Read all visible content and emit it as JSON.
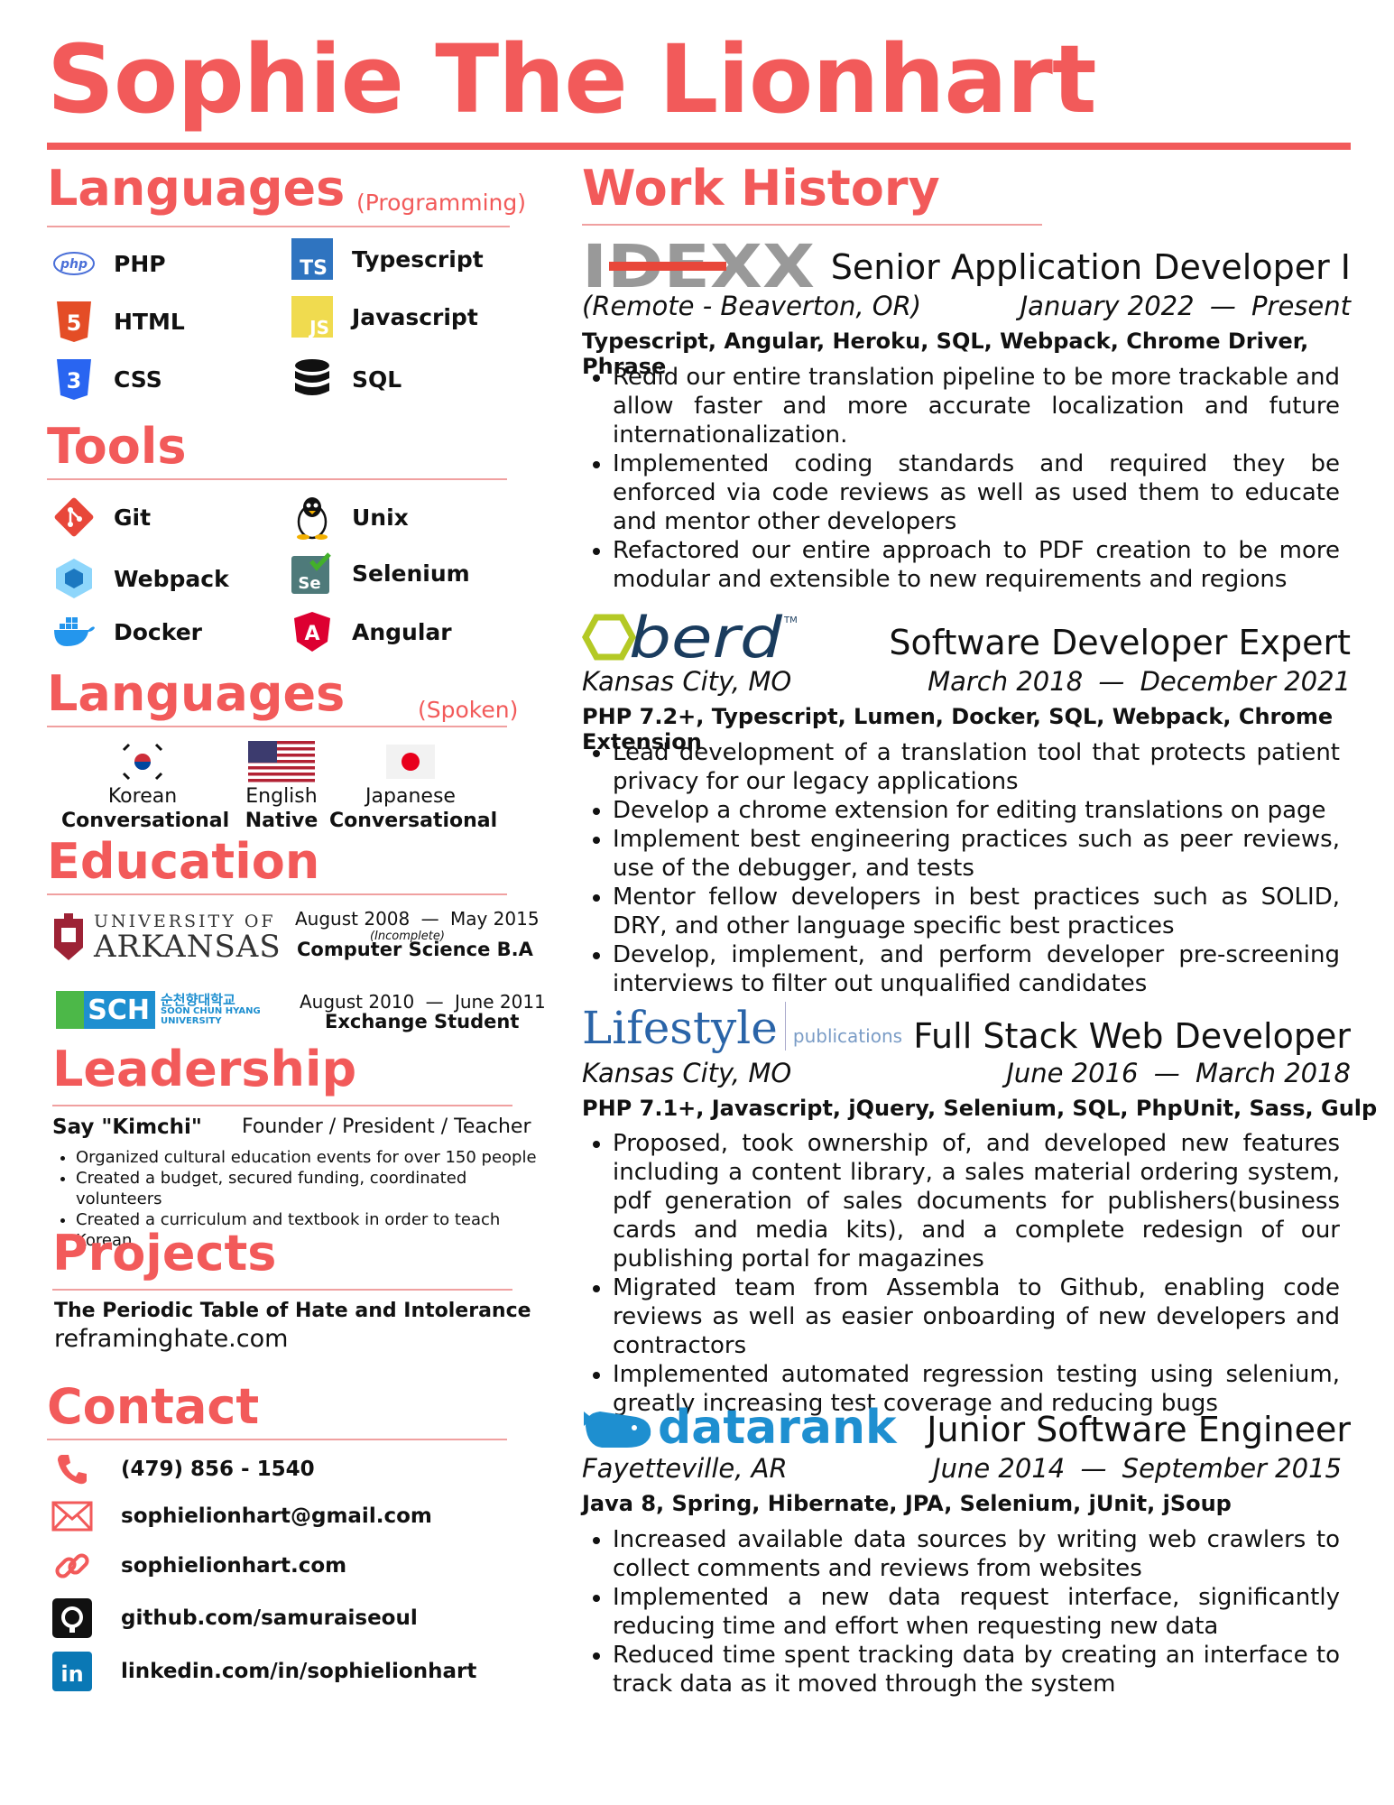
{
  "name": "Sophie The Lionhart",
  "colors": {
    "accent": "#f25a5a"
  },
  "sections": {
    "languages_prog": {
      "title": "Languages",
      "sub": "(Programming)"
    },
    "tools": {
      "title": "Tools"
    },
    "languages_spoken": {
      "title": "Languages",
      "sub": "(Spoken)"
    },
    "education": {
      "title": "Education"
    },
    "leadership": {
      "title": "Leadership"
    },
    "projects": {
      "title": "Projects"
    },
    "contact": {
      "title": "Contact"
    },
    "work": {
      "title": "Work History"
    }
  },
  "prog_langs": [
    {
      "label": "PHP",
      "icon": "php-icon"
    },
    {
      "label": "Typescript",
      "icon": "typescript-icon"
    },
    {
      "label": "HTML",
      "icon": "html5-icon"
    },
    {
      "label": "Javascript",
      "icon": "javascript-icon"
    },
    {
      "label": "CSS",
      "icon": "css3-icon"
    },
    {
      "label": "SQL",
      "icon": "database-icon"
    }
  ],
  "tools": [
    {
      "label": "Git",
      "icon": "git-icon"
    },
    {
      "label": "Unix",
      "icon": "linux-penguin-icon"
    },
    {
      "label": "Webpack",
      "icon": "webpack-icon"
    },
    {
      "label": "Selenium",
      "icon": "selenium-icon"
    },
    {
      "label": "Docker",
      "icon": "docker-icon"
    },
    {
      "label": "Angular",
      "icon": "angular-icon"
    }
  ],
  "spoken": [
    {
      "lang": "Korean",
      "level": "Conversational",
      "icon": "korea-flag-icon"
    },
    {
      "lang": "English",
      "level": "Native",
      "icon": "usa-flag-icon"
    },
    {
      "lang": "Japanese",
      "level": "Conversational",
      "icon": "japan-flag-icon"
    }
  ],
  "education": [
    {
      "logo_line1": "UNIVERSITY OF",
      "logo_line2": "ARKANSAS",
      "start": "August 2008",
      "end": "May 2015",
      "note": "(Incomplete)",
      "degree": "Computer Science B.A"
    },
    {
      "logo_abbr": "SCH",
      "logo_kr": "순천향대학교",
      "logo_en1": "SOON CHUN HYANG",
      "logo_en2": "UNIVERSITY",
      "start": "August 2010",
      "end": "June 2011",
      "degree": "Exchange Student"
    }
  ],
  "leadership": {
    "org": "Say \"Kimchi\"",
    "role": "Founder / President / Teacher",
    "bullets": [
      "Organized cultural education events for over 150 people",
      "Created a budget, secured funding, coordinated volunteers",
      "Created a curriculum and textbook in order to teach Korean"
    ]
  },
  "projects": {
    "name": "The Periodic Table of Hate and Intolerance",
    "url": "reframinghate.com"
  },
  "contact": [
    {
      "text": "(479) 856 - 1540",
      "icon": "phone-icon"
    },
    {
      "text": "sophielionhart@gmail.com",
      "icon": "mail-icon"
    },
    {
      "text": "sophielionhart.com",
      "icon": "link-icon"
    },
    {
      "text": "github.com/samuraiseoul",
      "icon": "github-icon"
    },
    {
      "text": "linkedin.com/in/sophielionhart",
      "icon": "linkedin-icon"
    }
  ],
  "dash": "—",
  "jobs": [
    {
      "logo": "IDEXX",
      "title": "Senior Application Developer I",
      "location": "(Remote - Beaverton, OR)",
      "start": "January 2022",
      "end": "Present",
      "tech": "Typescript, Angular, Heroku, SQL,  Webpack, Chrome Driver, Phrase",
      "bullets": [
        "Redid our entire translation pipeline to be more trackable and allow faster and more accurate localization and future internationalization.",
        "Implemented coding standards and required they be enforced via code reviews as well as used them to educate and mentor other developers",
        "Refactored our entire approach to PDF creation to be more modular and extensible to new requirements and regions"
      ]
    },
    {
      "logo": "berd",
      "logo_tm": "TM",
      "title": "Software Developer Expert",
      "location": "Kansas City, MO",
      "start": "March 2018",
      "end": "December 2021",
      "tech": "PHP 7.2+, Typescript, Lumen, Docker, SQL,  Webpack, Chrome Extension",
      "bullets": [
        "Lead development of a translation tool that protects patient privacy for our legacy applications",
        "Develop a chrome extension for editing translations on page",
        "Implement best engineering practices such as peer reviews, use of the debugger, and tests",
        "Mentor fellow developers in best practices such as SOLID, DRY, and other language specific best practices",
        "Develop, implement, and perform developer pre-screening interviews to filter out unqualified candidates"
      ]
    },
    {
      "logo": "Lifestyle",
      "logo_sub": "publications",
      "title": "Full Stack Web Developer",
      "location": "Kansas City, MO",
      "start": "June 2016",
      "end": "March 2018",
      "tech": "PHP 7.1+, Javascript, jQuery, Selenium, SQL, PhpUnit, Sass, Gulp",
      "bullets": [
        "Proposed, took ownership of, and developed new features including a content library, a sales material ordering system, pdf generation of sales documents for publishers(business cards and media kits), and a complete redesign of our publishing portal for magazines",
        "Migrated team from Assembla to Github, enabling code reviews as well as easier onboarding of new developers and contractors",
        "Implemented automated regression testing using selenium, greatly increasing test coverage and reducing bugs"
      ]
    },
    {
      "logo": "datarank",
      "title": "Junior Software Engineer",
      "location": "Fayetteville, AR",
      "start": "June 2014",
      "end": "September 2015",
      "tech": "Java 8, Spring, Hibernate, JPA, Selenium, jUnit, jSoup",
      "bullets": [
        "Increased available data sources by writing web crawlers to collect comments and reviews from websites",
        "Implemented a new data request interface, significantly reducing time and effort when requesting new data",
        "Reduced time spent tracking data by creating an interface to track data as it moved through the system"
      ]
    }
  ]
}
